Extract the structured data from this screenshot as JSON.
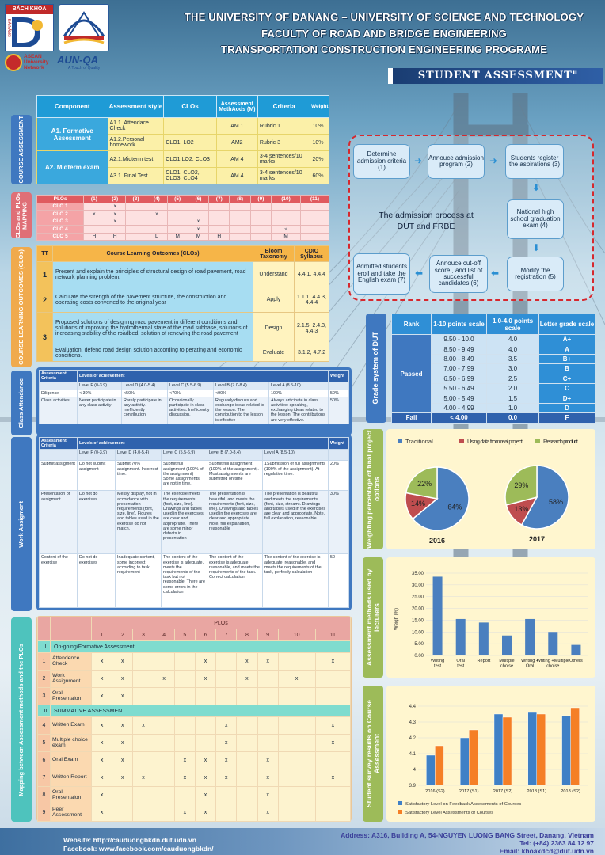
{
  "header": {
    "line1": "THE UNIVERSITY OF DANANG – UNIVERSITY OF SCIENCE AND TECHNOLOGY",
    "line2": "FACULTY OF ROAD AND BRIDGE ENGINEERING",
    "line3": "TRANSPORTATION CONSTRUCTION ENGINEERING PROGRAME",
    "banner": "STUDENT ASSESSMENT\"",
    "logo1_text": "BÁCH KHOA",
    "logo1_sub": "ĐÀ NẴNG",
    "asean_text": "ASEAN University Network",
    "aunqa_text": "AUN-QA",
    "aunqa_sub": "A Touch of Quality"
  },
  "side_labels": {
    "course_assessment": "COURSE ASSESSMENT",
    "clos_plos": "CLOs and PLOs MAPPING",
    "clo_outcomes": "COURSE LEARNING OUTCOMES (CLOs)",
    "class_attendance": "Class Attendance",
    "work_assignment": "Work Assigment",
    "mapping": "Mapping between Assessment methods and the PLOs",
    "grade": "Grade system of DUT",
    "weighting": "Weighting percentage of final project options",
    "methods": "Assessment methods used by lecturers",
    "survey": "Student survey results on Course Assessment"
  },
  "component_table": {
    "headers": [
      "Component",
      "Assessment style",
      "CLOs",
      "Assessment MethAods (M)",
      "Criteria",
      "Weight"
    ],
    "groups": [
      {
        "label": "A1. Formative Assessment",
        "rows": [
          [
            "A1.1. Attendace Check",
            "",
            "AM 1",
            "Rubric 1",
            "10%"
          ],
          [
            "A1.2.Personal homework",
            "CLO1, LO2",
            "AM2",
            "Rubric 3",
            "10%"
          ]
        ]
      },
      {
        "label": "A2. Midterm exam",
        "rows": [
          [
            "A2.1.Midterm test",
            "CLO1,LO2, CLO3",
            "AM 4",
            "3-4 sentences/10 marks",
            "20%"
          ],
          [
            "A3.1. Final Test",
            "CLO1, CLO2, CLO3, CLO4",
            "AM 4",
            "3-4 sentences/10 marks",
            "60%"
          ]
        ]
      }
    ]
  },
  "plo_map": {
    "header": [
      "PLOs",
      "(1)",
      "(2)",
      "(3)",
      "(4)",
      "(5)",
      "(6)",
      "(7)",
      "(8)",
      "(9)",
      "(10)",
      "(11)"
    ],
    "rows": [
      [
        "CLO 1",
        "",
        "x",
        "",
        "",
        "",
        "",
        "",
        "",
        "",
        "",
        ""
      ],
      [
        "CLO 2",
        "x",
        "x",
        "",
        "x",
        "",
        "",
        "",
        "",
        "",
        "",
        ""
      ],
      [
        "CLO 3",
        "",
        "x",
        "",
        "",
        "",
        "x",
        "",
        "",
        "",
        "",
        ""
      ],
      [
        "CLO 4",
        "",
        "",
        "",
        "",
        "",
        "x",
        "",
        "",
        "",
        "√",
        ""
      ],
      [
        "CLO 5",
        "H",
        "H",
        "",
        "L",
        "M",
        "M",
        "H",
        "",
        "",
        "M",
        ""
      ]
    ]
  },
  "clo_table": {
    "headers": [
      "TT",
      "Course Learning Outcomes (CLOs)",
      "Bloom Taxonomy",
      "CDIO Syllabus"
    ],
    "rows": [
      {
        "n": "1",
        "text": "Present and explain the principles of structural design of road pavement, road network planning problem.",
        "bloom": "Understand",
        "cdio": "4.4.1, 4.4.4"
      },
      {
        "n": "2",
        "text": "Calculate the strength of the pavement structure, the construction and operating costs converted to the original year",
        "bloom": "Apply",
        "cdio": "1.1.1, 4.4.3, 4.4.4"
      },
      {
        "n": "3",
        "text": "Proposed solutions of designing road pavement in different conditions and solutions of improving the hydrothermal state of the road subbase, solutions of increasing stability of the roadbed, solution of renewing the road pavement",
        "bloom": "Design",
        "cdio": "2.1.5, 2.4.3, 4.4.3"
      },
      {
        "n": "",
        "text": "Evaluation, defend road design solution according to perating and economic conditions.",
        "bloom": "Evaluate",
        "cdio": "3.1.2, 4.7.2"
      }
    ]
  },
  "attendance": {
    "h_criteria": "Assessment Criteria",
    "h_levels": "Levels of achievement",
    "h_weight": "Weight",
    "levels": [
      "Level F (0-3.9)",
      "Level D (4.0-5.4)",
      "Level C (5.5-6.9)",
      "Level B (7.0-8.4)",
      "Level A (8.5-10)"
    ],
    "rows": [
      [
        "Diligence",
        "< 30%",
        "<50%",
        "<70%",
        "<90%",
        "100%",
        "50%"
      ],
      [
        "Class activities",
        "Never participate in any class activity",
        "Rarely participate in any activity. Inefficiently contribution.",
        "Occasionally participate in class activities. Inefficiently discussion.",
        "Regularly discuss and exchange ideas related to the lesson. The contribution to the lesson is effective",
        "Always  articipate in class activities: speaking,  exchanging ideas related to the lesson. The contributions are very effective.",
        "50%"
      ]
    ]
  },
  "assignment": {
    "h_criteria": "Assessment Criteria",
    "h_levels": "Levels of achievement",
    "h_weight": "Weight",
    "levels": [
      "Level F (0-3.9)",
      "Level D (4.0-5.4)",
      "Level C (5.5-6.9)",
      "Level B (7.0-8.4)",
      "Level A (8.5-10)"
    ],
    "rows": [
      [
        "Submit assigment",
        "Do not submit assigment",
        "Submit 70% assignment. Incorrect time.",
        "Submit full assignment (100% of the assignment) Some assignments are not in time.",
        "Submit full assignment (100% of the assignment). Most assignments are submitted on time",
        "1Submission of full assignments (100% of the assignment). At regulation time.",
        "20%"
      ],
      [
        "Presentation of assigment",
        "Do not do exercises",
        "Messy display, not in accordance with presentation requirements (font, size, line). Figures and tables used in the exercise do not match.",
        "The exercise meets the requirements (font, size, line). Drawings and tables used in the exercises are clear and appropriate. There are some minor defects in presentation",
        "The presentation is beautiful, and meets the requirements (font, size, line). Drawings and tables used in the exercises are clear and appropriate. Note, full explanation, reasonable",
        "The presentation is beautiful and meets the requirements (font, size, stream). Drawings and tables used in the exercises are clear and appropriate. Note, full explanation, reasonable.",
        "30%"
      ],
      [
        "Content of the exercise",
        "Do not do exercises",
        "Inadequate content, some incorrect according to task requirement",
        "The content of the exercise is adequate, meets the requirements of the task but not reasonable. There are some errors in the calculation",
        "The content of the exercise is adequate, reasonable, and meets the requirements of the task. Correct calculation.",
        "The content of the exercise is adequate, reasonable, and meets the requirements of the task, perfectly calculation",
        "50"
      ]
    ]
  },
  "big_map": {
    "title": "PLOs",
    "cols": [
      "1",
      "2",
      "3",
      "4",
      "5",
      "6",
      "7",
      "8",
      "9",
      "10",
      "11"
    ],
    "sections": [
      {
        "no": "I",
        "title": "On-going/Formative Assessment",
        "rows": [
          {
            "no": "1",
            "act": "Attendence Check",
            "v": [
              "x",
              "x",
              "",
              "",
              "",
              "x",
              "",
              "x",
              "x",
              "",
              "x"
            ]
          },
          {
            "no": "2",
            "act": "Work Assignment",
            "v": [
              "x",
              "x",
              "",
              "x",
              "",
              "x",
              "",
              "x",
              "",
              "x",
              ""
            ]
          },
          {
            "no": "3",
            "act": "Oral Presentaion",
            "v": [
              "x",
              "x",
              "",
              "",
              "",
              "",
              "",
              "",
              "",
              "",
              ""
            ]
          }
        ]
      },
      {
        "no": "II",
        "title": "SUMMATIVE ASSESSMENT",
        "rows": [
          {
            "no": "4",
            "act": "Written Exam",
            "v": [
              "x",
              "x",
              "x",
              "",
              "",
              "",
              "x",
              "",
              "",
              "",
              "x"
            ]
          },
          {
            "no": "5",
            "act": "Multiple choice exam",
            "v": [
              "x",
              "x",
              "",
              "",
              "",
              "",
              "x",
              "",
              "",
              "",
              "x"
            ]
          },
          {
            "no": "6",
            "act": "Oral Exam",
            "v": [
              "x",
              "x",
              "",
              "",
              "x",
              "x",
              "x",
              "",
              "x",
              "",
              ""
            ]
          },
          {
            "no": "7",
            "act": "Written Report",
            "v": [
              "x",
              "x",
              "x",
              "",
              "x",
              "x",
              "x",
              "",
              "x",
              "",
              "x"
            ]
          },
          {
            "no": "8",
            "act": "Oral Presentaion",
            "v": [
              "x",
              "",
              "",
              "",
              "",
              "x",
              "",
              "",
              "x",
              "",
              ""
            ]
          },
          {
            "no": "9",
            "act": "Peer Assessment",
            "v": [
              "x",
              "",
              "",
              "",
              "x",
              "x",
              "",
              "",
              "x",
              "",
              ""
            ]
          }
        ]
      }
    ]
  },
  "admission": {
    "title": "The admission process at DUT and FRBE",
    "steps": [
      "Determine admission criteria (1)",
      "Annouce admission program (2)",
      "Students register the aspirations (3)",
      "National high school graduation exam (4)",
      "Modify the registration (5)",
      "Annouce cut-off score , and list of successful candidates (6)",
      "Admitted students eroll and take the English exam (7)"
    ]
  },
  "grade": {
    "headers": [
      "Rank",
      "1-10 points scale",
      "1.0-4.0 points scale",
      "Letter grade scale"
    ],
    "passed_label": "Passed",
    "rows": [
      [
        "9.50 - 10.0",
        "4.0",
        "A+"
      ],
      [
        "8.50 - 9.49",
        "4.0",
        "A"
      ],
      [
        "8.00 - 8.49",
        "3.5",
        "B+"
      ],
      [
        "7.00 - 7.99",
        "3.0",
        "B"
      ],
      [
        "6.50 - 6.99",
        "2.5",
        "C+"
      ],
      [
        "5.50 - 6.49",
        "2.0",
        "C"
      ],
      [
        "5.00 - 5.49",
        "1.5",
        "D+"
      ],
      [
        "4.00 - 4.99",
        "1.0",
        "D"
      ]
    ],
    "fail": [
      "Fail",
      "< 4.00",
      "0.0",
      "F"
    ]
  },
  "colors": {
    "blue": "#3f78c0",
    "red": "#bf4d4f",
    "green": "#9dbb59",
    "orange": "#f57f26",
    "steel": "#4a7fbf"
  },
  "chart_data": [
    {
      "type": "pie",
      "title": "",
      "legend": [
        "Traditional",
        "Using data from real project",
        "Research product"
      ],
      "pies": [
        {
          "label": "2016",
          "values": [
            64,
            14,
            22
          ]
        },
        {
          "label": "2017",
          "values": [
            58,
            13,
            29
          ]
        }
      ]
    },
    {
      "type": "bar",
      "title": "",
      "ylabel": "Weigh (%)",
      "ylim": [
        0,
        35
      ],
      "yticks": [
        "0.00",
        "5.00",
        "10.00",
        "15.00",
        "20.00",
        "25.00",
        "30.00",
        "35.00"
      ],
      "categories": [
        "Writing test",
        "Oral test",
        "Report",
        "Multiple choise",
        "Writing + Oral",
        "Writing +Multiple choise",
        "Others"
      ],
      "values": [
        33.5,
        15.5,
        14.0,
        8.5,
        15.5,
        10.0,
        4.5
      ]
    },
    {
      "type": "bar",
      "title": "",
      "ylim": [
        3.9,
        4.4
      ],
      "yticks": [
        "3.9",
        "4",
        "4.1",
        "4.2",
        "4.3",
        "4.4"
      ],
      "categories": [
        "2016 (S2)",
        "2017 (S1)",
        "2017 (S2)",
        "2018 (S1)",
        "2018 (S2)"
      ],
      "series": [
        {
          "name": "Satisfactory Level on Feedback Assessments of Courses",
          "values": [
            4.09,
            4.2,
            4.35,
            4.36,
            4.34
          ]
        },
        {
          "name": "Satisfactory Level  Assessments of Courses",
          "values": [
            4.15,
            4.25,
            4.33,
            4.35,
            4.39
          ]
        }
      ]
    }
  ],
  "footer": {
    "website": "Website: http://cauduongbkdn.dut.udn.vn",
    "facebook": "Facebook: www.facebook.com/cauduongbkdn/",
    "address": "Address: A316, Building A, 54-NGUYEN LUONG BANG Street, Danang, Vietnam",
    "tel": "Tel: (+84) 2363 84 12 97",
    "email": "Email: khoaxdcd@dut.udn.vn"
  }
}
